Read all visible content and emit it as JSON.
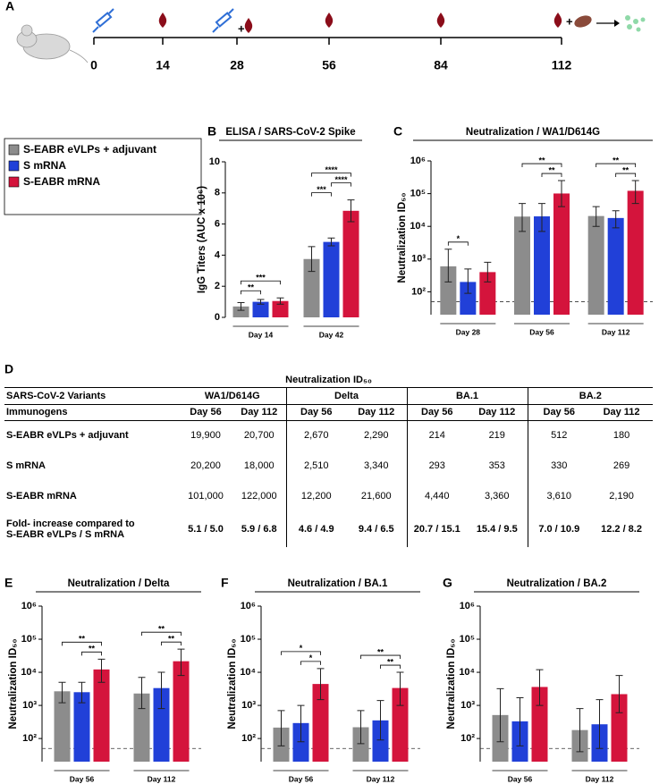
{
  "timeline": {
    "panel": "A",
    "timepoints": [
      0,
      14,
      28,
      56,
      84,
      112
    ]
  },
  "chart_data": [
    {
      "type": "bar",
      "panel": "B",
      "title": "ELISA / SARS-CoV-2 Spike",
      "y_label": "IgG Titers (AUC x 10⁶)",
      "categories": [
        "Day 14",
        "Day 42"
      ],
      "series": [
        {
          "name": "S-EABR eVLPs + adjuvant",
          "color": "#8c8c8c",
          "values": [
            0.7,
            3.75
          ],
          "lower": [
            0.45,
            2.95
          ],
          "upper": [
            0.95,
            4.55
          ]
        },
        {
          "name": "S mRNA",
          "color": "#2140d8",
          "values": [
            1.0,
            4.85
          ],
          "lower": [
            0.85,
            4.6
          ],
          "upper": [
            1.15,
            5.1
          ]
        },
        {
          "name": "S-EABR mRNA",
          "color": "#d4143c",
          "values": [
            1.05,
            6.85
          ],
          "lower": [
            0.85,
            6.15
          ],
          "upper": [
            1.25,
            7.55
          ]
        }
      ],
      "ylim": [
        0,
        10
      ],
      "yticks": [
        0,
        2,
        4,
        6,
        8,
        10
      ],
      "annotations": [
        {
          "label": "**",
          "category": 0,
          "from": 0,
          "to": 1
        },
        {
          "label": "***",
          "category": 0,
          "from": 0,
          "to": 2
        },
        {
          "label": "***",
          "category": 1,
          "from": 0,
          "to": 1
        },
        {
          "label": "****",
          "category": 1,
          "from": 1,
          "to": 2
        },
        {
          "label": "****",
          "category": 1,
          "from": 0,
          "to": 2
        }
      ]
    },
    {
      "type": "bar",
      "panel": "C",
      "title": "Neutralization / WA1/D614G",
      "y_label": "Neutralization ID₅₀",
      "log_scale": true,
      "categories": [
        "Day 28",
        "Day 56",
        "Day 112"
      ],
      "series": [
        {
          "color": "#8c8c8c",
          "values": [
            600,
            19900,
            20700
          ],
          "lower": [
            200,
            7000,
            10000
          ],
          "upper": [
            2000,
            50000,
            40000
          ]
        },
        {
          "color": "#2140d8",
          "values": [
            200,
            20200,
            18000
          ],
          "lower": [
            90,
            7000,
            9000
          ],
          "upper": [
            500,
            50000,
            30000
          ]
        },
        {
          "color": "#d4143c",
          "values": [
            400,
            101000,
            122000
          ],
          "lower": [
            200,
            40000,
            50000
          ],
          "upper": [
            800,
            250000,
            250000
          ]
        }
      ],
      "ylim": [
        20,
        1000000
      ],
      "reference_line": 50,
      "yticks": [
        {
          "value": 100,
          "label": "10²"
        },
        {
          "value": 1000,
          "label": "10³"
        },
        {
          "value": 10000,
          "label": "10⁴"
        },
        {
          "value": 100000,
          "label": "10⁵"
        },
        {
          "value": 1000000,
          "label": "10⁶"
        }
      ],
      "annotations": [
        {
          "label": "*",
          "category": 0,
          "from": 0,
          "to": 1
        },
        {
          "label": "**",
          "category": 1,
          "from": 1,
          "to": 2
        },
        {
          "label": "**",
          "category": 1,
          "from": 0,
          "to": 2
        },
        {
          "label": "**",
          "category": 2,
          "from": 1,
          "to": 2
        },
        {
          "label": "**",
          "category": 2,
          "from": 0,
          "to": 2
        }
      ]
    },
    {
      "type": "bar",
      "panel": "E",
      "title": "Neutralization / Delta",
      "y_label": "Neutralization ID₅₀",
      "log_scale": true,
      "categories": [
        "Day 56",
        "Day 112"
      ],
      "series": [
        {
          "color": "#8c8c8c",
          "values": [
            2670,
            2290
          ],
          "lower": [
            1200,
            800
          ],
          "upper": [
            5000,
            7000
          ]
        },
        {
          "color": "#2140d8",
          "values": [
            2510,
            3340
          ],
          "lower": [
            1200,
            800
          ],
          "upper": [
            5000,
            10000
          ]
        },
        {
          "color": "#d4143c",
          "values": [
            12200,
            21600
          ],
          "lower": [
            5000,
            8000
          ],
          "upper": [
            25000,
            50000
          ]
        }
      ],
      "ylim": [
        20,
        1000000
      ],
      "reference_line": 50,
      "yticks": [
        {
          "value": 100,
          "label": "10²"
        },
        {
          "value": 1000,
          "label": "10³"
        },
        {
          "value": 10000,
          "label": "10⁴"
        },
        {
          "value": 100000,
          "label": "10⁵"
        },
        {
          "value": 1000000,
          "label": "10⁶"
        }
      ],
      "annotations": [
        {
          "label": "**",
          "category": 0,
          "from": 1,
          "to": 2
        },
        {
          "label": "**",
          "category": 0,
          "from": 0,
          "to": 2
        },
        {
          "label": "**",
          "category": 1,
          "from": 1,
          "to": 2
        },
        {
          "label": "**",
          "category": 1,
          "from": 0,
          "to": 2
        }
      ]
    },
    {
      "type": "bar",
      "panel": "F",
      "title": "Neutralization / BA.1",
      "y_label": "Neutralization ID₅₀",
      "log_scale": true,
      "categories": [
        "Day 56",
        "Day 112"
      ],
      "series": [
        {
          "color": "#8c8c8c",
          "values": [
            214,
            219
          ],
          "lower": [
            60,
            70
          ],
          "upper": [
            700,
            700
          ]
        },
        {
          "color": "#2140d8",
          "values": [
            293,
            353
          ],
          "lower": [
            80,
            90
          ],
          "upper": [
            1000,
            1400
          ]
        },
        {
          "color": "#d4143c",
          "values": [
            4440,
            3360
          ],
          "lower": [
            1500,
            1000
          ],
          "upper": [
            13000,
            10000
          ]
        }
      ],
      "ylim": [
        20,
        1000000
      ],
      "reference_line": 50,
      "yticks": [
        {
          "value": 100,
          "label": "10²"
        },
        {
          "value": 1000,
          "label": "10³"
        },
        {
          "value": 10000,
          "label": "10⁴"
        },
        {
          "value": 100000,
          "label": "10⁵"
        },
        {
          "value": 1000000,
          "label": "10⁶"
        }
      ],
      "annotations": [
        {
          "label": "*",
          "category": 0,
          "from": 1,
          "to": 2
        },
        {
          "label": "*",
          "category": 0,
          "from": 0,
          "to": 2
        },
        {
          "label": "**",
          "category": 1,
          "from": 1,
          "to": 2
        },
        {
          "label": "**",
          "category": 1,
          "from": 0,
          "to": 2
        }
      ]
    },
    {
      "type": "bar",
      "panel": "G",
      "title": "Neutralization / BA.2",
      "y_label": "Neutralization ID₅₀",
      "log_scale": true,
      "categories": [
        "Day 56",
        "Day 112"
      ],
      "series": [
        {
          "color": "#8c8c8c",
          "values": [
            512,
            180
          ],
          "lower": [
            80,
            40
          ],
          "upper": [
            3200,
            800
          ]
        },
        {
          "color": "#2140d8",
          "values": [
            330,
            269
          ],
          "lower": [
            60,
            50
          ],
          "upper": [
            1700,
            1500
          ]
        },
        {
          "color": "#d4143c",
          "values": [
            3610,
            2190
          ],
          "lower": [
            1000,
            600
          ],
          "upper": [
            12000,
            8000
          ]
        }
      ],
      "ylim": [
        20,
        1000000
      ],
      "reference_line": 50,
      "yticks": [
        {
          "value": 100,
          "label": "10²"
        },
        {
          "value": 1000,
          "label": "10³"
        },
        {
          "value": 10000,
          "label": "10⁴"
        },
        {
          "value": 100000,
          "label": "10⁵"
        },
        {
          "value": 1000000,
          "label": "10⁶"
        }
      ]
    }
  ],
  "table": {
    "panel": "D",
    "title": "Neutralization ID₅₀",
    "variant_header": "SARS-CoV-2 Variants",
    "variants": [
      "WA1/D614G",
      "Delta",
      "BA.1",
      "BA.2"
    ],
    "immunogen_header": "Immunogens",
    "days": [
      "Day 56",
      "Day 112",
      "Day 56",
      "Day 112",
      "Day 56",
      "Day 112",
      "Day 56",
      "Day 112"
    ],
    "rows": [
      [
        "S-EABR eVLPs + adjuvant",
        "19,900",
        "20,700",
        "2,670",
        "2,290",
        "214",
        "219",
        "512",
        "180"
      ],
      [
        "S mRNA",
        "20,200",
        "18,000",
        "2,510",
        "3,340",
        "293",
        "353",
        "330",
        "269"
      ],
      [
        "S-EABR mRNA",
        "101,000",
        "122,000",
        "12,200",
        "21,600",
        "4,440",
        "3,360",
        "3,610",
        "2,190"
      ],
      [
        "Fold- increase compared to\nS-EABR eVLPs / S mRNA",
        "5.1 / 5.0",
        "5.9 / 6.8",
        "4.6 / 4.9",
        "9.4 / 6.5",
        "20.7 / 15.1",
        "15.4 / 9.5",
        "7.0 / 10.9",
        "12.2 / 8.2"
      ]
    ]
  }
}
